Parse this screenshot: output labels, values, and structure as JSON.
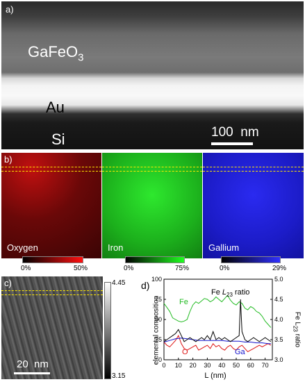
{
  "panel_a": {
    "label": "a)",
    "layers": {
      "top": "GaFeO3",
      "top_base": "GaFeO",
      "top_sub": "3",
      "middle": "Au",
      "bottom": "Si"
    },
    "scale_bar": "100  nm"
  },
  "panel_b": {
    "label": "b)",
    "maps": [
      {
        "name": "Oxygen",
        "color": "#e01818",
        "cbar_min": "0%",
        "cbar_max": "50%"
      },
      {
        "name": "Iron",
        "color": "#20e020",
        "cbar_min": "0%",
        "cbar_max": "75%"
      },
      {
        "name": "Gallium",
        "color": "#2020e8",
        "cbar_min": "0%",
        "cbar_max": "29%"
      }
    ]
  },
  "panel_c": {
    "label": "c)",
    "scale_bar": "20  nm",
    "cbar_max": "4.45",
    "cbar_min": "3.15"
  },
  "panel_d": {
    "label": "d)"
  },
  "chart_data": {
    "type": "line",
    "xlabel": "L (nm)",
    "ylabel": "elemental composition",
    "y2label": "Fe L23 ratio",
    "y2label_parts": {
      "base": "Fe L",
      "sub": "23",
      "rest": " ratio"
    },
    "xlim": [
      0,
      75
    ],
    "ylim": [
      0,
      100
    ],
    "y2lim": [
      3.0,
      5.0
    ],
    "xticks": [
      0,
      10,
      20,
      30,
      40,
      50,
      60,
      70
    ],
    "yticks": [
      0,
      25,
      50,
      75,
      100
    ],
    "y2ticks": [
      3.0,
      3.5,
      4.0,
      4.5,
      5.0
    ],
    "annotations": [
      {
        "text": "Fe",
        "color": "#22bb22"
      },
      {
        "text": "O",
        "color": "#dd1111"
      },
      {
        "text": "Ga",
        "color": "#1111cc"
      },
      {
        "text": "Fe L23 ratio",
        "base": "Fe ",
        "italic": "L",
        "sub": "23",
        "rest": " ratio",
        "color": "#000000"
      }
    ],
    "series": [
      {
        "name": "Fe",
        "color": "#22bb22",
        "axis": "left",
        "x": [
          0,
          2,
          4,
          6,
          8,
          10,
          12,
          14,
          16,
          18,
          20,
          22,
          24,
          26,
          28,
          30,
          32,
          34,
          36,
          38,
          40,
          42,
          44,
          46,
          48,
          50,
          52,
          54,
          56,
          58,
          60,
          62,
          64,
          66,
          68,
          70,
          72,
          74
        ],
        "y": [
          70,
          65,
          60,
          52,
          50,
          48,
          47,
          48,
          50,
          60,
          68,
          72,
          70,
          73,
          76,
          75,
          72,
          74,
          78,
          75,
          72,
          76,
          80,
          74,
          70,
          68,
          72,
          70,
          64,
          62,
          66,
          64,
          60,
          58,
          54,
          48,
          44,
          40
        ]
      },
      {
        "name": "O",
        "color": "#dd1111",
        "axis": "left",
        "x": [
          0,
          2,
          4,
          6,
          8,
          10,
          12,
          14,
          16,
          18,
          20,
          22,
          24,
          26,
          28,
          30,
          32,
          34,
          36,
          38,
          40,
          42,
          44,
          46,
          48,
          50,
          52,
          54,
          56,
          58,
          60,
          62,
          64,
          66,
          68,
          70,
          72,
          74
        ],
        "y": [
          22,
          18,
          16,
          20,
          24,
          30,
          20,
          14,
          12,
          14,
          16,
          18,
          12,
          14,
          16,
          18,
          14,
          20,
          16,
          18,
          14,
          12,
          16,
          18,
          14,
          12,
          16,
          18,
          14,
          10,
          12,
          14,
          16,
          18,
          16,
          18,
          20,
          18
        ]
      },
      {
        "name": "Ga",
        "color": "#1111cc",
        "axis": "left",
        "x": [
          0,
          4,
          8,
          12,
          16,
          20,
          24,
          28,
          32,
          36,
          40,
          44,
          48,
          52,
          56,
          60,
          64,
          68,
          72,
          74
        ],
        "y": [
          22,
          24,
          26,
          27,
          26,
          25,
          24,
          24,
          24,
          24,
          24,
          23,
          23,
          23,
          22,
          22,
          21,
          21,
          20,
          20
        ]
      },
      {
        "name": "Fe L23 ratio",
        "color": "#000000",
        "axis": "right",
        "x": [
          0,
          2,
          4,
          6,
          8,
          10,
          12,
          14,
          16,
          18,
          20,
          22,
          24,
          26,
          28,
          30,
          32,
          34,
          36,
          38,
          40,
          42,
          44,
          46,
          48,
          50,
          52,
          53,
          54,
          56,
          58,
          60,
          62,
          64,
          66,
          68,
          70,
          72,
          74
        ],
        "y": [
          3.45,
          3.5,
          3.55,
          3.6,
          3.65,
          3.75,
          3.6,
          3.45,
          3.5,
          3.55,
          3.5,
          3.45,
          3.5,
          3.55,
          3.5,
          3.6,
          3.5,
          3.7,
          3.5,
          3.55,
          3.5,
          3.55,
          3.5,
          3.45,
          3.5,
          3.55,
          3.6,
          4.5,
          3.7,
          3.5,
          3.45,
          3.5,
          3.55,
          3.5,
          3.45,
          3.5,
          3.55,
          3.5,
          3.45
        ]
      }
    ]
  }
}
